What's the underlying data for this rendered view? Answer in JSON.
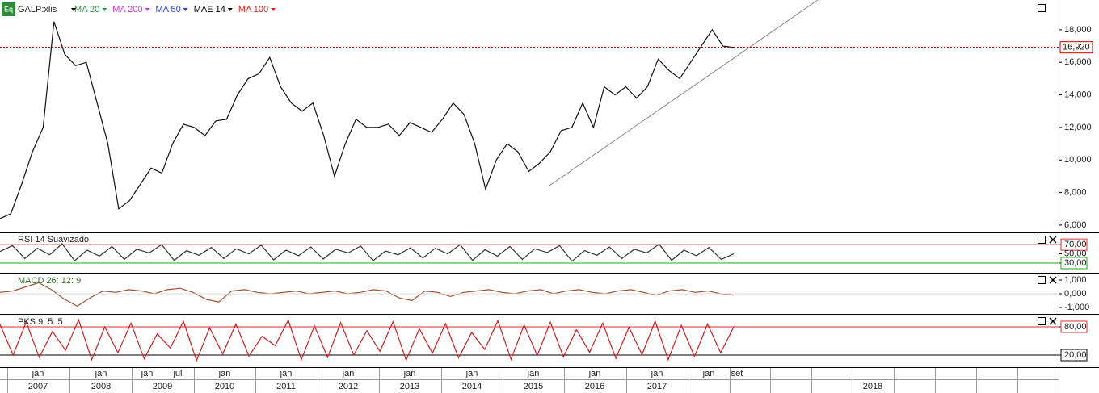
{
  "toolbar": {
    "icon_label": "Eq",
    "symbol": "GALP:xlis",
    "indicators": [
      {
        "name": "MA 20",
        "color": "#2e9a4a"
      },
      {
        "name": "MA 200",
        "color": "#d63ad6"
      },
      {
        "name": "MA 50",
        "color": "#2a3fd6"
      },
      {
        "name": "MAE 14",
        "color": "#000000"
      },
      {
        "name": "MA 100",
        "color": "#e02020"
      }
    ]
  },
  "price_panel": {
    "ylim": [
      5550,
      19830
    ],
    "color": "#111111",
    "yticks": [
      {
        "value": 6000,
        "label": "6,000"
      },
      {
        "value": 8000,
        "label": "8,000"
      },
      {
        "value": 10000,
        "label": "10,000"
      },
      {
        "value": 12000,
        "label": "12,000"
      },
      {
        "value": 14000,
        "label": "14,000"
      },
      {
        "value": 16000,
        "label": "16,000"
      },
      {
        "value": 18000,
        "label": "18,000"
      }
    ],
    "last_price": {
      "value": 16920,
      "label": "16,920"
    },
    "values": [
      6400,
      6700,
      8500,
      10500,
      12000,
      18500,
      16500,
      15800,
      16000,
      13500,
      11000,
      7000,
      7500,
      8500,
      9500,
      9200,
      11000,
      12200,
      12000,
      11500,
      12400,
      12500,
      14000,
      15000,
      15300,
      16300,
      14500,
      13500,
      13000,
      13500,
      11500,
      9000,
      11000,
      12500,
      12000,
      12000,
      12200,
      11500,
      12300,
      12000,
      11700,
      12500,
      13500,
      12800,
      11000,
      8200,
      10000,
      11000,
      10500,
      9300,
      9800,
      10500,
      11800,
      12000,
      13500,
      12000,
      14500,
      14000,
      14500,
      13800,
      14500,
      16200,
      15500,
      15000,
      16000,
      17000,
      18000,
      17000,
      16920
    ]
  },
  "rsi_panel": {
    "title": "RSI 14 Suavizado",
    "ylim": [
      9,
      93
    ],
    "color": "#333333",
    "yticks": [
      {
        "value": 70,
        "label": "70,00"
      },
      {
        "value": 50,
        "label": "50,00"
      },
      {
        "value": 30,
        "label": "30,00"
      }
    ],
    "values": [
      55,
      68,
      40,
      62,
      48,
      72,
      35,
      58,
      45,
      66,
      38,
      60,
      52,
      70,
      36,
      57,
      47,
      64,
      40,
      61,
      50,
      69,
      37,
      58,
      46,
      65,
      39,
      60,
      52,
      67,
      35,
      56,
      48,
      63,
      41,
      62,
      50,
      70,
      36,
      59,
      45,
      66,
      38,
      61,
      53,
      68,
      34,
      57,
      47,
      65,
      40,
      60,
      52,
      71,
      36,
      58,
      46,
      64,
      38,
      50
    ]
  },
  "macd_panel": {
    "title": "MACD 26: 12: 9",
    "ylim": [
      -1.41,
      1.41
    ],
    "color": "#a0522d",
    "yticks": [
      {
        "value": 1,
        "label": "1,000"
      },
      {
        "value": 0,
        "label": "0,000"
      },
      {
        "value": -1,
        "label": "-1,000"
      }
    ],
    "values": [
      0.1,
      0.2,
      0.5,
      0.8,
      0.3,
      -0.4,
      -0.9,
      -0.3,
      0.2,
      0.1,
      0.3,
      0.2,
      0.0,
      0.3,
      0.4,
      0.1,
      -0.4,
      -0.6,
      0.2,
      0.3,
      0.1,
      0.0,
      0.1,
      0.2,
      0.0,
      0.1,
      0.2,
      0.0,
      0.1,
      0.3,
      0.2,
      -0.3,
      -0.5,
      0.2,
      0.1,
      -0.2,
      0.1,
      0.2,
      0.3,
      0.1,
      0.0,
      0.2,
      0.3,
      0.0,
      0.2,
      0.3,
      0.1,
      0.0,
      0.2,
      0.3,
      0.1,
      -0.1,
      0.2,
      0.3,
      0.1,
      0.2,
      0.0,
      -0.1
    ]
  },
  "stoch_panel": {
    "title": "PKS 9: 5: 5",
    "ylim": [
      -5.7,
      105.7
    ],
    "color": "#cc2020",
    "yticks": [
      {
        "value": 80,
        "label": "80,00"
      },
      {
        "value": 20,
        "label": "20,00"
      }
    ],
    "values": [
      85,
      20,
      90,
      15,
      70,
      30,
      95,
      10,
      80,
      25,
      88,
      12,
      65,
      35,
      92,
      8,
      78,
      22,
      86,
      18,
      60,
      40,
      94,
      10,
      82,
      15,
      89,
      20,
      72,
      28,
      91,
      9,
      76,
      24,
      87,
      14,
      68,
      32,
      93,
      11,
      84,
      19,
      90,
      16,
      74,
      26,
      88,
      13,
      79,
      21,
      92,
      10,
      83,
      17,
      86,
      25,
      80
    ]
  },
  "time_axis": {
    "months": [
      "jan",
      "jan",
      "jan",
      "jul",
      "jan",
      "jan",
      "jan",
      "jan",
      "jan",
      "jan",
      "jan",
      "jan",
      "jan",
      "set"
    ],
    "years": [
      "2007",
      "2008",
      "2009",
      "2010",
      "2011",
      "2012",
      "2013",
      "2014",
      "2015",
      "2016",
      "2017",
      "2018"
    ]
  }
}
